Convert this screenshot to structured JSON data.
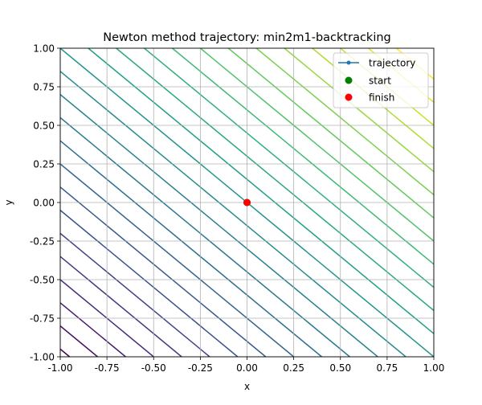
{
  "chart_data": {
    "type": "contour",
    "title": "Newton method trajectory: min2m1-backtracking",
    "xlabel": "x",
    "ylabel": "y",
    "xlim": [
      -1.0,
      1.0
    ],
    "ylim": [
      -1.0,
      1.0
    ],
    "xticks": [
      "-1.00",
      "-0.75",
      "-0.50",
      "-0.25",
      "0.00",
      "0.25",
      "0.50",
      "0.75",
      "1.00"
    ],
    "yticks": [
      "-1.00",
      "-0.75",
      "-0.50",
      "-0.25",
      "0.00",
      "0.25",
      "0.50",
      "0.75",
      "1.00"
    ],
    "grid": true,
    "legend_position": "top-right",
    "contours": {
      "colormap": "viridis",
      "x_plus_y_levels": [
        -1.95,
        -1.8,
        -1.65,
        -1.5,
        -1.35,
        -1.2,
        -1.05,
        -0.9,
        -0.75,
        -0.6,
        -0.45,
        -0.3,
        -0.15,
        0.0,
        0.15,
        0.3,
        0.45,
        0.6,
        0.75,
        0.9,
        1.05,
        1.2,
        1.35,
        1.5,
        1.65,
        1.8
      ]
    },
    "series": [
      {
        "name": "trajectory",
        "kind": "line",
        "color": "#1f77b4",
        "x": [
          0.0
        ],
        "y": [
          0.0
        ]
      },
      {
        "name": "start",
        "kind": "scatter",
        "color": "#008000",
        "x": [
          0.0
        ],
        "y": [
          0.0
        ]
      },
      {
        "name": "finish",
        "kind": "scatter",
        "color": "#ff0000",
        "x": [
          0.0
        ],
        "y": [
          0.0
        ]
      }
    ]
  }
}
